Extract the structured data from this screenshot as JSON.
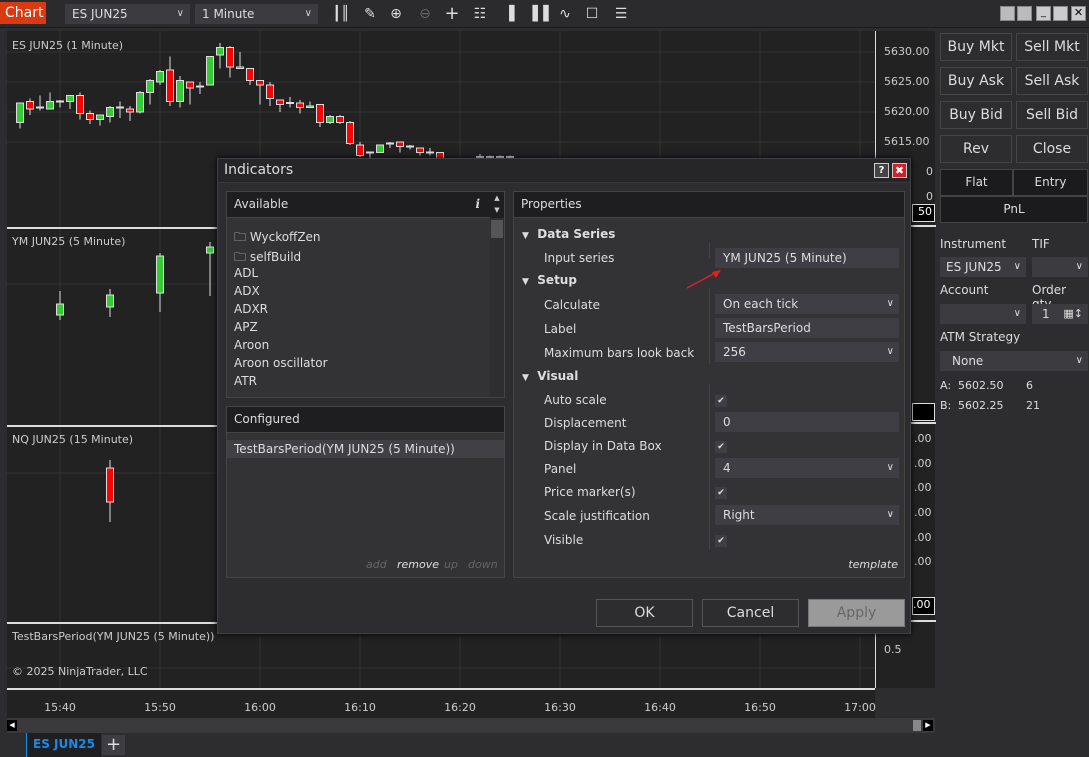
{
  "toolbar": {
    "chart_label": "Chart",
    "instrument": "ES JUN25",
    "interval": "1 Minute",
    "icons": [
      "bar-type-icon",
      "drawing-tool-icon",
      "zoom-in-icon",
      "zoom-out-icon",
      "crosshair-icon",
      "data-box-icon",
      "chart-trader-icon",
      "indicators-icon",
      "strategies-icon",
      "properties-icon",
      "list-icon"
    ]
  },
  "panels": {
    "p1": "ES JUN25 (1 Minute)",
    "p2": "YM JUN25 (5 Minute)",
    "p3": "NQ JUN25 (15 Minute)",
    "p4": "TestBarsPeriod(YM JUN25 (5 Minute))",
    "copyright": "© 2025 NinjaTrader, LLC"
  },
  "price_axis": {
    "ticks": [
      "5630.00",
      "5625.00",
      "5620.00",
      "5615.00"
    ],
    "partial_labels": [
      "0",
      "0",
      "50",
      ".00",
      ".00",
      ".00",
      ".00",
      ".00",
      ".00",
      ".00"
    ],
    "panel4_tick": "0.5"
  },
  "time_axis": [
    "15:40",
    "15:50",
    "16:00",
    "16:10",
    "16:20",
    "16:30",
    "16:40",
    "16:50",
    "17:00"
  ],
  "tabs": {
    "active": "ES JUN25",
    "add": "+"
  },
  "chart_trader": {
    "buy_mkt": "Buy Mkt",
    "sell_mkt": "Sell Mkt",
    "buy_ask": "Buy Ask",
    "sell_ask": "Sell Ask",
    "buy_bid": "Buy Bid",
    "sell_bid": "Sell Bid",
    "rev": "Rev",
    "close": "Close",
    "flat": "Flat",
    "entry": "Entry",
    "pnl": "PnL",
    "instrument_label": "Instrument",
    "instrument": "ES JUN25",
    "tif_label": "TIF",
    "tif": "",
    "account_label": "Account",
    "account": "",
    "qty_label": "Order qty",
    "qty": "1",
    "atm_label": "ATM Strategy",
    "atm": "None",
    "ask_label": "A:",
    "ask_price": "5602.50",
    "ask_size": "6",
    "bid_label": "B:",
    "bid_price": "5602.25",
    "bid_size": "21"
  },
  "dialog": {
    "title": "Indicators",
    "available_header": "Available",
    "available": {
      "folders": [
        "WyckoffZen",
        "selfBuild"
      ],
      "items": [
        "ADL",
        "ADX",
        "ADXR",
        "APZ",
        "Aroon",
        "Aroon oscillator",
        "ATR"
      ]
    },
    "configured_header": "Configured",
    "configured": [
      "TestBarsPeriod(YM JUN25 (5 Minute))"
    ],
    "list_actions": {
      "add": "add",
      "remove": "remove",
      "up": "up",
      "down": "down"
    },
    "properties_header": "Properties",
    "data_series": {
      "title": "Data Series",
      "input_series_label": "Input series",
      "input_series": "YM JUN25 (5 Minute)"
    },
    "setup": {
      "title": "Setup",
      "calculate_label": "Calculate",
      "calculate": "On each tick",
      "label_label": "Label",
      "label": "TestBarsPeriod",
      "max_bars_label": "Maximum bars look back",
      "max_bars": "256"
    },
    "visual": {
      "title": "Visual",
      "auto_scale_label": "Auto scale",
      "auto_scale": true,
      "displacement_label": "Displacement",
      "displacement": "0",
      "data_box_label": "Display in Data Box",
      "data_box": true,
      "panel_label": "Panel",
      "panel": "4",
      "price_markers_label": "Price marker(s)",
      "price_markers": true,
      "scale_label": "Scale justification",
      "scale": "Right",
      "visible_label": "Visible",
      "visible": true
    },
    "template": "template",
    "ok": "OK",
    "cancel": "Cancel",
    "apply": "Apply",
    "help": "?"
  },
  "colors": {
    "up": "#33cc33",
    "down": "#ff0000",
    "accent": "#1e88e5",
    "chart_label_bg": "#d93a12",
    "arrow": "#e02020"
  },
  "chart_data": {
    "type": "candlestick",
    "title": "ES JUN25 (1 Minute)",
    "ylim": [
      5612,
      5633
    ],
    "columns": [
      "time",
      "open",
      "high",
      "low",
      "close"
    ],
    "bars": [
      [
        "15:36",
        5618.25,
        5621.5,
        5617.25,
        5621.5
      ],
      [
        "15:37",
        5621.75,
        5622.25,
        5619.5,
        5620.5
      ],
      [
        "15:38",
        5620.75,
        5622.75,
        5620.25,
        5620.75
      ],
      [
        "15:39",
        5620.5,
        5623.25,
        5620.5,
        5621.75
      ],
      [
        "15:40",
        5621.75,
        5622,
        5620.75,
        5621.75
      ],
      [
        "15:41",
        5621.75,
        5622.75,
        5620.5,
        5622.75
      ],
      [
        "15:42",
        5622.75,
        5623.25,
        5618.75,
        5619.75
      ],
      [
        "15:43",
        5619.75,
        5620.25,
        5618,
        5618.75
      ],
      [
        "15:44",
        5618.75,
        5619.5,
        5617.75,
        5619.5
      ],
      [
        "15:45",
        5619.25,
        5621,
        5618.25,
        5620.75
      ],
      [
        "15:46",
        5620.75,
        5621.75,
        5619,
        5620.75
      ],
      [
        "15:47",
        5620.5,
        5621,
        5618.5,
        5620
      ],
      [
        "15:48",
        5620,
        5623.5,
        5619.75,
        5623.25
      ],
      [
        "15:49",
        5623.25,
        5625.5,
        5621.25,
        5625.25
      ],
      [
        "15:50",
        5625,
        5627,
        5624.5,
        5626.75
      ],
      [
        "15:51",
        5627,
        5629.25,
        5621,
        5621.75
      ],
      [
        "15:52",
        5621.75,
        5626,
        5620.75,
        5625.25
      ],
      [
        "15:53",
        5625,
        5625,
        5621.25,
        5624
      ],
      [
        "15:54",
        5624.25,
        5625,
        5623,
        5624.25
      ],
      [
        "15:55",
        5624.5,
        5629.25,
        5624.5,
        5629.25
      ],
      [
        "15:56",
        5629.5,
        5631.5,
        5627.25,
        5630.75
      ],
      [
        "15:57",
        5630.75,
        5631,
        5625.75,
        5627.5
      ],
      [
        "15:58",
        5627.5,
        5630,
        5627.25,
        5627.25
      ],
      [
        "15:59",
        5627.25,
        5627.25,
        5624.5,
        5625.25
      ],
      [
        "16:00",
        5625.25,
        5625.25,
        5621.25,
        5624.5
      ],
      [
        "16:01",
        5624.5,
        5625,
        5621,
        5622.25
      ],
      [
        "16:02",
        5622,
        5622,
        5620,
        5621.25
      ],
      [
        "16:03",
        5621.5,
        5622.5,
        5620.75,
        5621.5
      ],
      [
        "16:04",
        5621.5,
        5622,
        5619.75,
        5620.75
      ],
      [
        "16:05",
        5620.75,
        5621.75,
        5620.75,
        5621
      ],
      [
        "16:06",
        5621.25,
        5621.25,
        5617.5,
        5618.25
      ],
      [
        "16:07",
        5618.25,
        5619.5,
        5618,
        5619.25
      ],
      [
        "16:08",
        5619.25,
        5619.5,
        5618,
        5618.25
      ],
      [
        "16:09",
        5618.25,
        5618.5,
        5614.5,
        5614.75
      ],
      [
        "16:10",
        5614.5,
        5615,
        5612.5,
        5612.75
      ],
      [
        "16:11",
        5613.25,
        5613.25,
        5612.25,
        5613.25
      ],
      [
        "16:12",
        5613.25,
        5614.5,
        5613.25,
        5614.5
      ],
      [
        "16:13",
        5614.75,
        5615,
        5614,
        5614.75
      ],
      [
        "16:14",
        5615,
        5615,
        5613.25,
        5614.25
      ],
      [
        "16:15",
        5614.25,
        5614.5,
        5613.75,
        5614.25
      ],
      [
        "16:16",
        5614,
        5614,
        5612.75,
        5613.25
      ],
      [
        "16:17",
        5613.25,
        5614,
        5612.75,
        5613.25
      ],
      [
        "16:18",
        5613.25,
        5613.25,
        5612,
        5612
      ],
      [
        "16:22",
        5612.5,
        5613,
        5612.5,
        5612.5
      ],
      [
        "16:23",
        5612.5,
        5612.75,
        5612.5,
        5612.5
      ],
      [
        "16:24",
        5612.5,
        5612.75,
        5612.5,
        5612.5
      ],
      [
        "16:25",
        5612.5,
        5612.75,
        5612.5,
        5612.5
      ]
    ]
  }
}
